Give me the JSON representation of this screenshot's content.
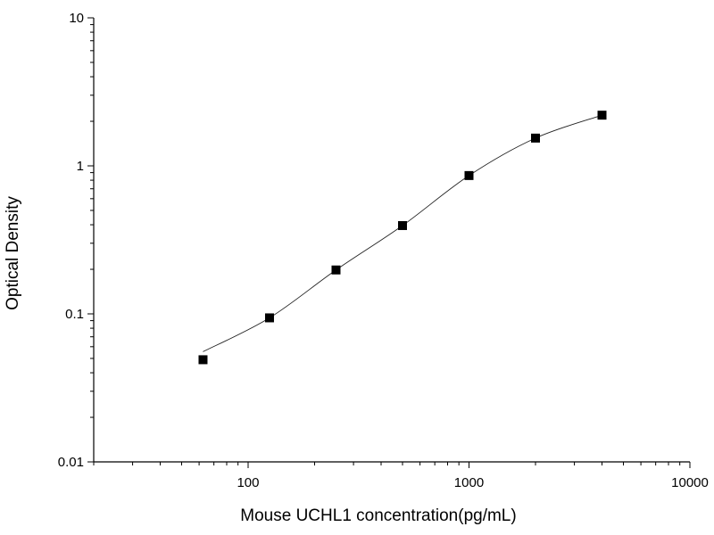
{
  "chart_data": {
    "type": "scatter",
    "title": "",
    "xlabel": "Mouse UCHL1 concentration(pg/mL)",
    "ylabel": "Optical Density",
    "x_scale": "log",
    "y_scale": "log",
    "xlim": [
      20,
      10000
    ],
    "ylim": [
      0.01,
      10
    ],
    "x_ticks": [
      "100",
      "1000",
      "10000"
    ],
    "y_ticks": [
      "0.01",
      "0.1",
      "1",
      "10"
    ],
    "grid": false,
    "legend": "none",
    "series": [
      {
        "points": [
          {
            "x": 62.5,
            "y": 0.049
          },
          {
            "x": 125,
            "y": 0.094
          },
          {
            "x": 250,
            "y": 0.198
          },
          {
            "x": 500,
            "y": 0.395
          },
          {
            "x": 1000,
            "y": 0.86
          },
          {
            "x": 2000,
            "y": 1.54
          },
          {
            "x": 4000,
            "y": 2.2
          }
        ],
        "fit_curve": true,
        "color": "#000000"
      }
    ]
  }
}
